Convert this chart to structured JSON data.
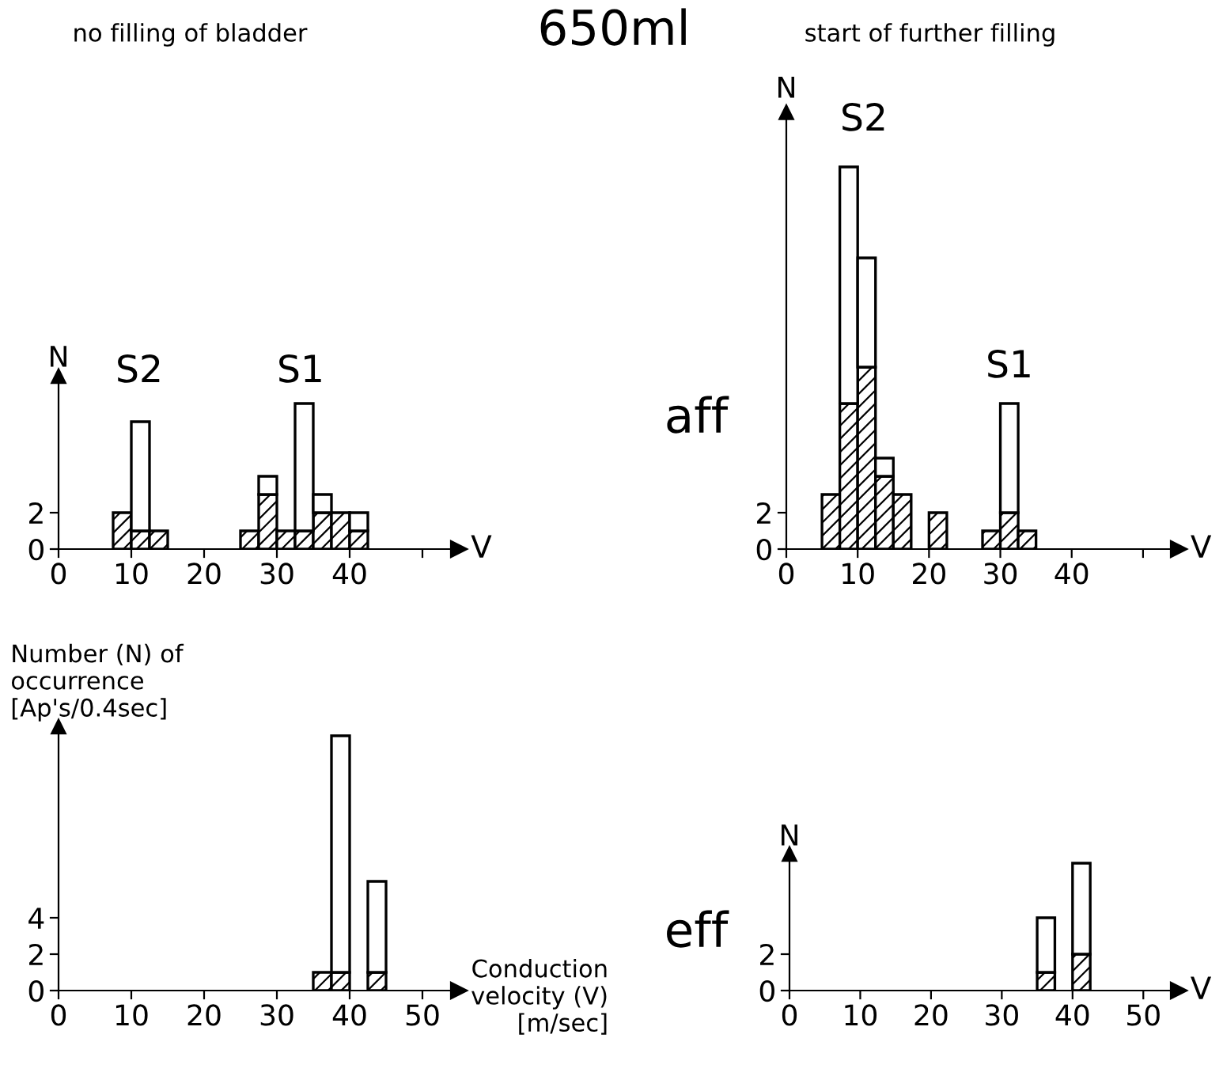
{
  "chart_data": [
    {
      "type": "bar",
      "title": "no filling of bladder",
      "xlabel": "V",
      "ylabel": "N",
      "stacked": true,
      "x": [
        8.75,
        11.25,
        13.75,
        16.25,
        18.75,
        21.25,
        23.75,
        26.25,
        28.75,
        31.25,
        33.75,
        36.25,
        38.75,
        41.25
      ],
      "series": [
        {
          "color": "#000000",
          "values": [
            2,
            1,
            1,
            0,
            0,
            0,
            0,
            1,
            3,
            1,
            1,
            2,
            2,
            1
          ]
        },
        {
          "color": "#ffffff",
          "values": [
            0,
            6,
            0,
            0,
            0,
            0,
            0,
            0,
            1,
            0,
            7,
            1,
            0,
            1
          ]
        }
      ],
      "xlim": [
        0,
        55
      ],
      "xticks": [
        0,
        10,
        20,
        30,
        40,
        {
          "value": 50,
          "label": null
        }
      ],
      "ylim": [
        0,
        9.5
      ],
      "yticks": [
        0,
        2
      ],
      "annotations": [
        "650ml",
        "aff",
        "S2",
        "S1"
      ]
    },
    {
      "type": "bar",
      "title": "start of further filling",
      "xlabel": "V",
      "ylabel": "N",
      "stacked": true,
      "x": [
        6.25,
        8.75,
        11.25,
        13.75,
        16.25,
        18.75,
        21.25,
        23.75,
        26.25,
        28.75,
        31.25,
        33.75
      ],
      "series": [
        {
          "color": "#000000",
          "values": [
            3,
            8,
            10,
            4,
            3,
            0,
            2,
            0,
            0,
            1,
            2,
            1
          ]
        },
        {
          "color": "#ffffff",
          "values": [
            0,
            13,
            6,
            1,
            0,
            0,
            0,
            0,
            0,
            0,
            6,
            0
          ]
        }
      ],
      "xlim": [
        0,
        55
      ],
      "xticks": [
        0,
        10,
        20,
        30,
        40,
        {
          "value": 50,
          "label": null
        }
      ],
      "ylim": [
        0,
        24
      ],
      "yticks": [
        0,
        2
      ],
      "annotations": [
        "S2",
        "S1"
      ]
    },
    {
      "type": "bar",
      "xlabel": "Conduction\nvelocity (V)\n[m/sec]",
      "ylabel": "Number (N) of\noccurrence\n[Ap's/0.4sec]",
      "stacked": true,
      "x": [
        36.25,
        38.75,
        41.25,
        43.75
      ],
      "series": [
        {
          "color": "#000000",
          "values": [
            1,
            1,
            0,
            1
          ]
        },
        {
          "color": "#ffffff",
          "values": [
            0,
            13,
            0,
            5
          ]
        }
      ],
      "xlim": [
        0,
        55
      ],
      "xticks": [
        0,
        10,
        20,
        30,
        40,
        50
      ],
      "ylim": [
        0,
        14.5
      ],
      "yticks": [
        0,
        2,
        4
      ],
      "annotations": [
        "eff"
      ]
    },
    {
      "type": "bar",
      "xlabel": "V",
      "ylabel": "N",
      "stacked": true,
      "x": [
        36.25,
        38.75,
        41.25
      ],
      "series": [
        {
          "color": "#000000",
          "values": [
            1,
            0,
            2
          ]
        },
        {
          "color": "#ffffff",
          "values": [
            3,
            0,
            5
          ]
        }
      ],
      "xlim": [
        0,
        55
      ],
      "xticks": [
        0,
        10,
        20,
        30,
        40,
        50
      ],
      "ylim": [
        0,
        7.5
      ],
      "yticks": [
        0,
        2
      ]
    }
  ]
}
